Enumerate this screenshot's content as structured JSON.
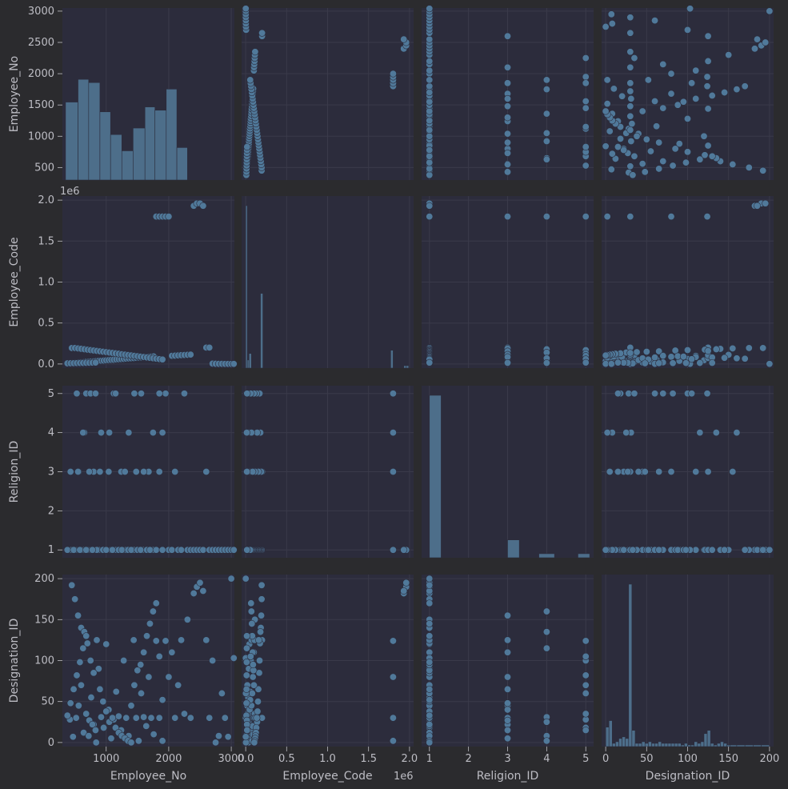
{
  "chart_data": {
    "type": "pairplot",
    "variables": [
      "Employee_No",
      "Employee_Code",
      "Religion_ID",
      "Designation_ID"
    ],
    "offset_labels": {
      "Employee_Code": "1e6"
    },
    "axes": {
      "Employee_No": {
        "lim": [
          300,
          3050
        ],
        "ticks": [
          1000,
          2000,
          3000
        ],
        "yticks": [
          500,
          1000,
          1500,
          2000,
          2500,
          3000
        ]
      },
      "Employee_Code": {
        "lim": [
          -0.05,
          2.05
        ],
        "ticks": [
          0.0,
          0.5,
          1.0,
          1.5,
          2.0
        ],
        "tick_labels": [
          "0.0",
          "0.5",
          "1.0",
          "1.5",
          "2.0"
        ]
      },
      "Religion_ID": {
        "lim": [
          0.8,
          5.2
        ],
        "ticks": [
          1,
          2,
          3,
          4,
          5
        ]
      },
      "Designation_ID": {
        "lim": [
          -5,
          205
        ],
        "ticks": [
          0,
          50,
          100,
          150,
          200
        ]
      }
    },
    "histograms": {
      "Employee_No": {
        "bins": [
          [
            350,
            550,
            0.48
          ],
          [
            550,
            720,
            0.62
          ],
          [
            720,
            900,
            0.6
          ],
          [
            900,
            1070,
            0.42
          ],
          [
            1070,
            1250,
            0.28
          ],
          [
            1250,
            1430,
            0.18
          ],
          [
            1430,
            1620,
            0.32
          ],
          [
            1620,
            1780,
            0.45
          ],
          [
            1780,
            1960,
            0.43
          ],
          [
            1960,
            2130,
            0.56
          ],
          [
            2130,
            2300,
            0.2
          ]
        ]
      },
      "Employee_Code": {
        "bins": [
          [
            0.0,
            0.02,
            1.0
          ],
          [
            0.02,
            0.04,
            0.05
          ],
          [
            0.04,
            0.07,
            0.09
          ],
          [
            0.18,
            0.21,
            0.46
          ],
          [
            1.77,
            1.8,
            0.11
          ],
          [
            1.93,
            1.96,
            0.015
          ],
          [
            1.96,
            1.99,
            0.015
          ]
        ]
      },
      "Religion_ID": {
        "bins": [
          [
            1.0,
            1.3,
            1.0
          ],
          [
            3.0,
            3.3,
            0.11
          ],
          [
            3.8,
            4.2,
            0.025
          ],
          [
            4.8,
            5.1,
            0.025
          ]
        ]
      },
      "Designation_ID": {
        "bins": [
          [
            0,
            4,
            0.12
          ],
          [
            4,
            8,
            0.16
          ],
          [
            8,
            12,
            0.02
          ],
          [
            12,
            16,
            0.03
          ],
          [
            16,
            20,
            0.05
          ],
          [
            20,
            24,
            0.06
          ],
          [
            24,
            28,
            0.05
          ],
          [
            28,
            32,
            1.0
          ],
          [
            32,
            36,
            0.1
          ],
          [
            36,
            40,
            0.02
          ],
          [
            40,
            44,
            0.02
          ],
          [
            44,
            48,
            0.03
          ],
          [
            48,
            52,
            0.02
          ],
          [
            52,
            56,
            0.03
          ],
          [
            56,
            60,
            0.02
          ],
          [
            60,
            64,
            0.02
          ],
          [
            64,
            68,
            0.03
          ],
          [
            68,
            72,
            0.02
          ],
          [
            72,
            76,
            0.02
          ],
          [
            76,
            80,
            0.02
          ],
          [
            80,
            84,
            0.02
          ],
          [
            84,
            88,
            0.02
          ],
          [
            88,
            92,
            0.02
          ],
          [
            92,
            96,
            0.01
          ],
          [
            96,
            100,
            0.02
          ],
          [
            100,
            104,
            0.01
          ],
          [
            104,
            108,
            0.01
          ],
          [
            108,
            112,
            0.03
          ],
          [
            112,
            116,
            0.02
          ],
          [
            116,
            120,
            0.03
          ],
          [
            120,
            124,
            0.08
          ],
          [
            124,
            128,
            0.1
          ],
          [
            128,
            132,
            0.02
          ],
          [
            132,
            136,
            0.01
          ],
          [
            136,
            140,
            0.02
          ],
          [
            140,
            144,
            0.03
          ],
          [
            144,
            148,
            0.02
          ],
          [
            148,
            152,
            0.01
          ],
          [
            152,
            160,
            0.01
          ],
          [
            160,
            170,
            0.01
          ],
          [
            170,
            180,
            0.01
          ],
          [
            180,
            190,
            0.01
          ],
          [
            190,
            200,
            0.01
          ]
        ]
      }
    },
    "records": [
      [
        420,
        0.01,
        1,
        28
      ],
      [
        470,
        0.012,
        1,
        7
      ],
      [
        520,
        0.015,
        1,
        30
      ],
      [
        560,
        0.018,
        3,
        45
      ],
      [
        600,
        0.02,
        1,
        70
      ],
      [
        640,
        0.022,
        1,
        12
      ],
      [
        680,
        0.025,
        5,
        35
      ],
      [
        720,
        0.027,
        1,
        8
      ],
      [
        760,
        0.03,
        1,
        55
      ],
      [
        800,
        0.032,
        3,
        22
      ],
      [
        840,
        0.035,
        1,
        0
      ],
      [
        880,
        0.038,
        1,
        90
      ],
      [
        920,
        0.04,
        4,
        31
      ],
      [
        960,
        0.042,
        1,
        18
      ],
      [
        1000,
        0.045,
        1,
        120
      ],
      [
        1040,
        0.048,
        3,
        40
      ],
      [
        1080,
        0.05,
        1,
        5
      ],
      [
        1120,
        0.052,
        5,
        28
      ],
      [
        1160,
        0.055,
        1,
        62
      ],
      [
        1200,
        0.058,
        1,
        32
      ],
      [
        1240,
        0.06,
        3,
        15
      ],
      [
        1280,
        0.062,
        1,
        100
      ],
      [
        1320,
        0.065,
        1,
        30
      ],
      [
        1360,
        0.068,
        4,
        8
      ],
      [
        1400,
        0.07,
        1,
        45
      ],
      [
        1440,
        0.072,
        1,
        125
      ],
      [
        1480,
        0.075,
        3,
        30
      ],
      [
        1520,
        0.078,
        1,
        2
      ],
      [
        1560,
        0.08,
        5,
        60
      ],
      [
        1600,
        0.082,
        1,
        31
      ],
      [
        1640,
        0.085,
        1,
        20
      ],
      [
        1680,
        0.088,
        3,
        80
      ],
      [
        1720,
        0.09,
        1,
        30
      ],
      [
        1760,
        0.092,
        1,
        10
      ],
      [
        1800,
        1.8,
        1,
        124
      ],
      [
        1850,
        1.8,
        3,
        30
      ],
      [
        1900,
        1.8,
        4,
        2
      ],
      [
        1950,
        1.8,
        5,
        124
      ],
      [
        2000,
        1.8,
        1,
        80
      ],
      [
        2050,
        0.1,
        1,
        110
      ],
      [
        2100,
        0.102,
        3,
        30
      ],
      [
        2150,
        0.105,
        1,
        70
      ],
      [
        2200,
        0.108,
        1,
        125
      ],
      [
        2250,
        0.11,
        5,
        35
      ],
      [
        2300,
        0.112,
        1,
        150
      ],
      [
        2350,
        0.115,
        1,
        30
      ],
      [
        2400,
        1.93,
        1,
        182
      ],
      [
        2450,
        1.96,
        1,
        190
      ],
      [
        2500,
        1.96,
        1,
        195
      ],
      [
        2550,
        1.93,
        1,
        185
      ],
      [
        2600,
        0.2,
        3,
        125
      ],
      [
        2650,
        0.2,
        1,
        30
      ],
      [
        2700,
        0.005,
        1,
        100
      ],
      [
        2750,
        0.003,
        1,
        0
      ],
      [
        2800,
        0.002,
        1,
        8
      ],
      [
        2850,
        0.002,
        1,
        60
      ],
      [
        2900,
        0.001,
        1,
        30
      ],
      [
        2950,
        0.001,
        1,
        7
      ],
      [
        3000,
        0.001,
        1,
        200
      ],
      [
        3040,
        0.001,
        1,
        103
      ],
      [
        450,
        0.195,
        1,
        192
      ],
      [
        500,
        0.195,
        1,
        175
      ],
      [
        550,
        0.19,
        3,
        155
      ],
      [
        600,
        0.185,
        1,
        140
      ],
      [
        650,
        0.18,
        4,
        135
      ],
      [
        700,
        0.175,
        1,
        121
      ],
      [
        750,
        0.17,
        5,
        100
      ],
      [
        800,
        0.165,
        1,
        85
      ],
      [
        850,
        0.16,
        1,
        125
      ],
      [
        900,
        0.155,
        3,
        65
      ],
      [
        950,
        0.15,
        1,
        50
      ],
      [
        1000,
        0.145,
        1,
        38
      ],
      [
        1050,
        0.14,
        4,
        25
      ],
      [
        1100,
        0.135,
        1,
        30
      ],
      [
        1150,
        0.13,
        5,
        18
      ],
      [
        1200,
        0.125,
        1,
        12
      ],
      [
        1250,
        0.12,
        1,
        8
      ],
      [
        1300,
        0.115,
        3,
        5
      ],
      [
        1350,
        0.11,
        1,
        2
      ],
      [
        1400,
        0.105,
        1,
        0
      ],
      [
        1450,
        0.1,
        5,
        70
      ],
      [
        1500,
        0.095,
        1,
        88
      ],
      [
        1550,
        0.09,
        1,
        95
      ],
      [
        1600,
        0.085,
        3,
        110
      ],
      [
        1650,
        0.08,
        1,
        130
      ],
      [
        1700,
        0.075,
        1,
        145
      ],
      [
        1750,
        0.07,
        4,
        160
      ],
      [
        1800,
        0.065,
        1,
        170
      ],
      [
        1850,
        0.06,
        5,
        105
      ],
      [
        1900,
        0.055,
        1,
        52
      ],
      [
        380,
        0.008,
        1,
        33
      ],
      [
        430,
        0.009,
        3,
        48
      ],
      [
        480,
        0.01,
        1,
        65
      ],
      [
        530,
        0.011,
        5,
        82
      ],
      [
        580,
        0.012,
        1,
        98
      ],
      [
        630,
        0.013,
        4,
        115
      ],
      [
        680,
        0.014,
        1,
        130
      ],
      [
        730,
        0.015,
        3,
        27
      ],
      [
        780,
        0.016,
        1,
        22
      ],
      [
        830,
        0.017,
        5,
        15
      ]
    ],
    "xlabel_row": [
      "Employee_No",
      "Employee_Code",
      "Religion_ID",
      "Designation_ID"
    ],
    "ylabel_col": [
      "Employee_No",
      "Employee_Code",
      "Religion_ID",
      "Designation_ID"
    ]
  }
}
